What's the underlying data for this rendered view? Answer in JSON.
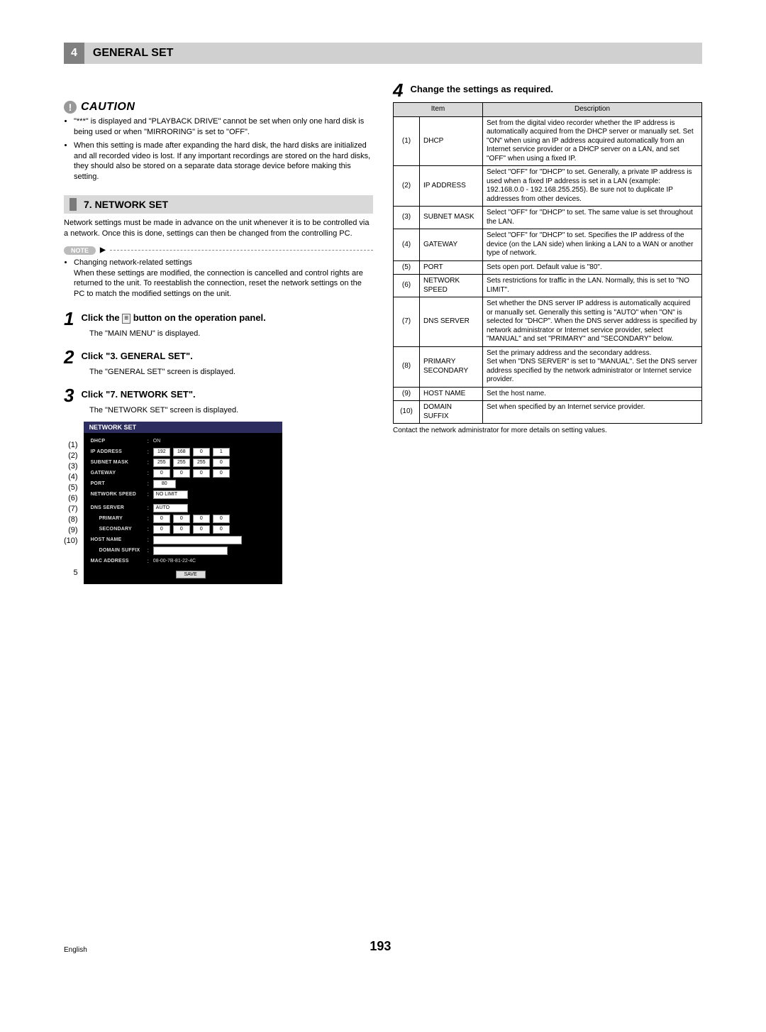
{
  "header": {
    "num": "4",
    "title": "GENERAL SET"
  },
  "caution": {
    "label": "CAUTION",
    "items": [
      "\"***\" is displayed and \"PLAYBACK DRIVE\" cannot be set when only one hard disk is being used or when \"MIRRORING\" is set to \"OFF\".",
      "When this setting is made after expanding the hard disk, the hard disks are initialized and all recorded video is lost. If any important recordings are stored on the hard disks, they should also be stored on a separate data storage device before making this setting."
    ]
  },
  "section7": {
    "title": "7. NETWORK SET",
    "intro": "Network settings must be made in advance on the unit whenever it is to be controlled via a network. Once this is done, settings can then be changed from the controlling PC."
  },
  "note": {
    "label": "NOTE",
    "item": "Changing network-related settings\nWhen these settings are modified, the connection is cancelled and control rights are returned to the unit. To reestablish the connection, reset the network settings on the PC to match the modified settings on the unit."
  },
  "steps": {
    "s1": {
      "title_a": "Click the ",
      "title_b": " button on the operation panel.",
      "sub": "The \"MAIN MENU\" is displayed."
    },
    "s2": {
      "title": "Click \"3. GENERAL SET\".",
      "sub": "The \"GENERAL SET\" screen is displayed."
    },
    "s3": {
      "title": "Click \"7. NETWORK SET\".",
      "sub": "The \"NETWORK SET\" screen is displayed."
    },
    "s4": {
      "title": "Change the settings as required."
    }
  },
  "netshot": {
    "title": "NETWORK SET",
    "dhcp": {
      "label": "DHCP",
      "val": "ON"
    },
    "ip": {
      "label": "IP ADDRESS",
      "v": [
        "192",
        "168",
        "0",
        "1"
      ]
    },
    "mask": {
      "label": "SUBNET MASK",
      "v": [
        "255",
        "255",
        "255",
        "0"
      ]
    },
    "gw": {
      "label": "GATEWAY",
      "v": [
        "0",
        "0",
        "0",
        "0"
      ]
    },
    "port": {
      "label": "PORT",
      "val": "80"
    },
    "speed": {
      "label": "NETWORK SPEED",
      "val": "NO LIMIT"
    },
    "dns": {
      "label": "DNS SERVER",
      "val": "AUTO"
    },
    "pri": {
      "label": "PRIMARY",
      "v": [
        "0",
        "0",
        "0",
        "0"
      ]
    },
    "sec": {
      "label": "SECONDARY",
      "v": [
        "0",
        "0",
        "0",
        "0"
      ]
    },
    "host": {
      "label": "HOST NAME"
    },
    "suffix": {
      "label": "DOMAIN SUFFIX"
    },
    "mac": {
      "label": "MAC ADDRESS",
      "val": "08-00-7B-81-22-4C"
    },
    "save": "SAVE",
    "markers": [
      "(1)",
      "(2)",
      "(3)",
      "(4)",
      "(5)",
      "(6)",
      "(7)",
      "(8)",
      "(9)",
      "(10)",
      "5"
    ]
  },
  "settings_table": {
    "headers": [
      "",
      "Item",
      "Description"
    ],
    "rows": [
      [
        "(1)",
        "DHCP",
        "Set from the digital video recorder whether the IP address is automatically acquired from the DHCP server or manually set. Set \"ON\" when using an IP address acquired automatically from an Internet service provider or a DHCP server on a LAN, and set \"OFF\" when using a fixed IP."
      ],
      [
        "(2)",
        "IP ADDRESS",
        "Select \"OFF\" for \"DHCP\" to set. Generally, a private IP address is used when a fixed IP address is set in a LAN (example: 192.168.0.0 - 192.168.255.255). Be sure not to duplicate IP addresses from other devices."
      ],
      [
        "(3)",
        "SUBNET MASK",
        "Select \"OFF\" for \"DHCP\" to set. The same value is set throughout the LAN."
      ],
      [
        "(4)",
        "GATEWAY",
        "Select \"OFF\" for \"DHCP\" to set. Specifies the IP address of the device (on the LAN side) when linking a LAN to a WAN or another type of network."
      ],
      [
        "(5)",
        "PORT",
        "Sets open port. Default value is \"80\"."
      ],
      [
        "(6)",
        "NETWORK SPEED",
        "Sets restrictions for traffic in the LAN. Normally, this is set to \"NO LIMIT\"."
      ],
      [
        "(7)",
        "DNS SERVER",
        "Set whether the DNS server IP address is automatically acquired or manually set. Generally this setting is \"AUTO\" when \"ON\" is selected for \"DHCP\". When the DNS server address is specified by network administrator or Internet service provider, select \"MANUAL\" and set \"PRIMARY\" and \"SECONDARY\" below."
      ],
      [
        "(8)",
        "PRIMARY SECONDARY",
        "Set the primary address and the secondary address.\nSet when \"DNS SERVER\" is set to \"MANUAL\". Set the DNS server address specified by the network administrator or Internet service provider."
      ],
      [
        "(9)",
        "HOST NAME",
        "Set the host name."
      ],
      [
        "(10)",
        "DOMAIN SUFFIX",
        "Set when specified by an Internet service provider."
      ]
    ],
    "footnote": "Contact the network administrator for more details on setting values."
  },
  "footer": {
    "lang": "English",
    "page": "193"
  }
}
